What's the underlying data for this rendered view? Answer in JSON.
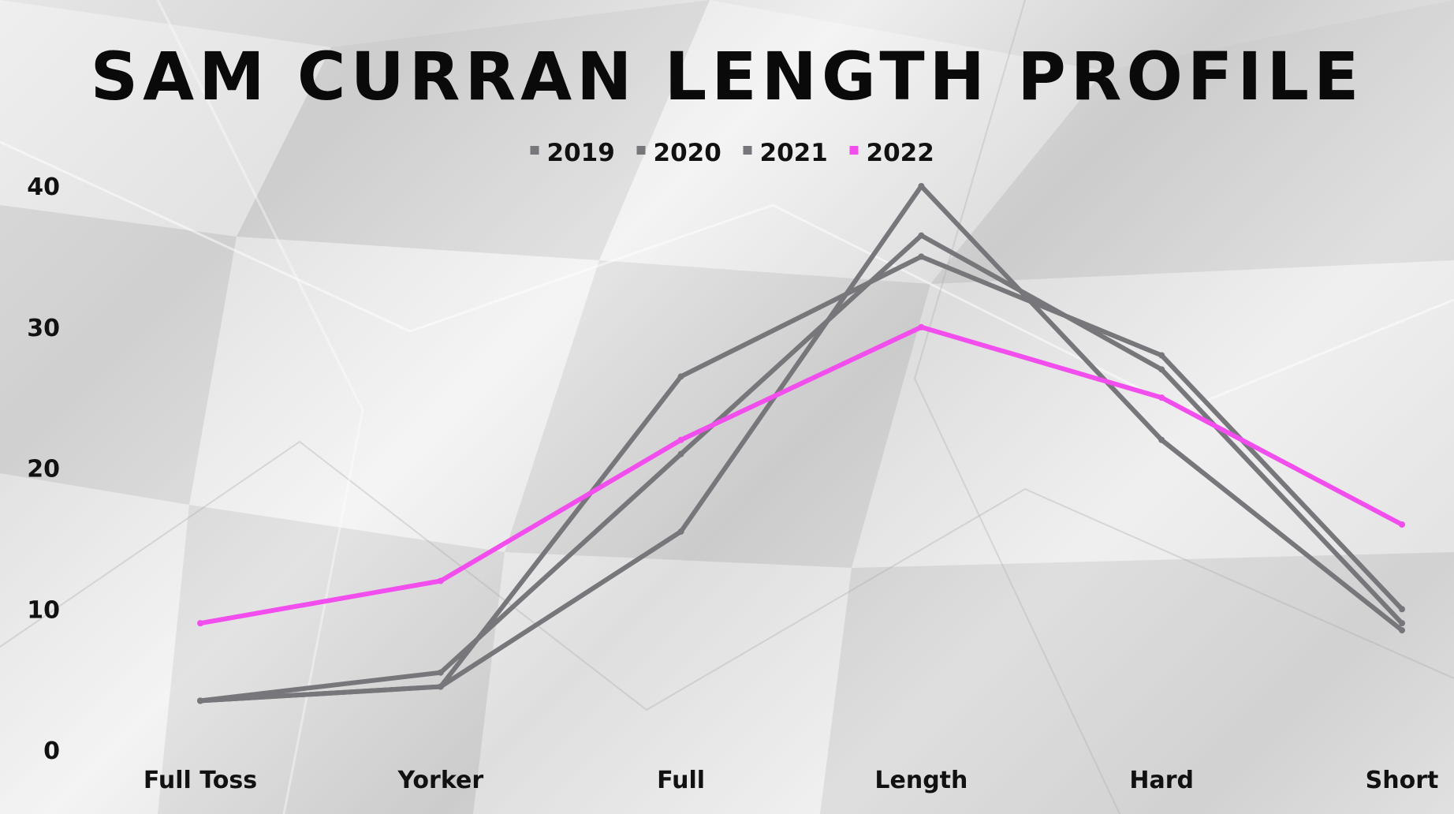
{
  "chart_data": {
    "type": "line",
    "title": "SAM CURRAN LENGTH PROFILE",
    "xlabel": "",
    "ylabel": "",
    "categories": [
      "Full Toss",
      "Yorker",
      "Full",
      "Length",
      "Hard",
      "Short"
    ],
    "y_ticks": [
      "0",
      "10",
      "20",
      "30",
      "40"
    ],
    "ylim": [
      0,
      40
    ],
    "grid": false,
    "legend_position": "top-center",
    "series": [
      {
        "name": "2019",
        "color": "#77777b",
        "values": [
          3.5,
          4.5,
          15.5,
          40,
          22,
          8.5
        ]
      },
      {
        "name": "2020",
        "color": "#77777b",
        "values": [
          3.5,
          5.5,
          21,
          36.5,
          27,
          9
        ]
      },
      {
        "name": "2021",
        "color": "#77777b",
        "values": [
          3.5,
          4.5,
          26.5,
          35,
          28,
          10
        ]
      },
      {
        "name": "2022",
        "color": "#f24ded",
        "values": [
          9,
          12,
          22,
          30,
          25,
          16
        ]
      }
    ]
  }
}
